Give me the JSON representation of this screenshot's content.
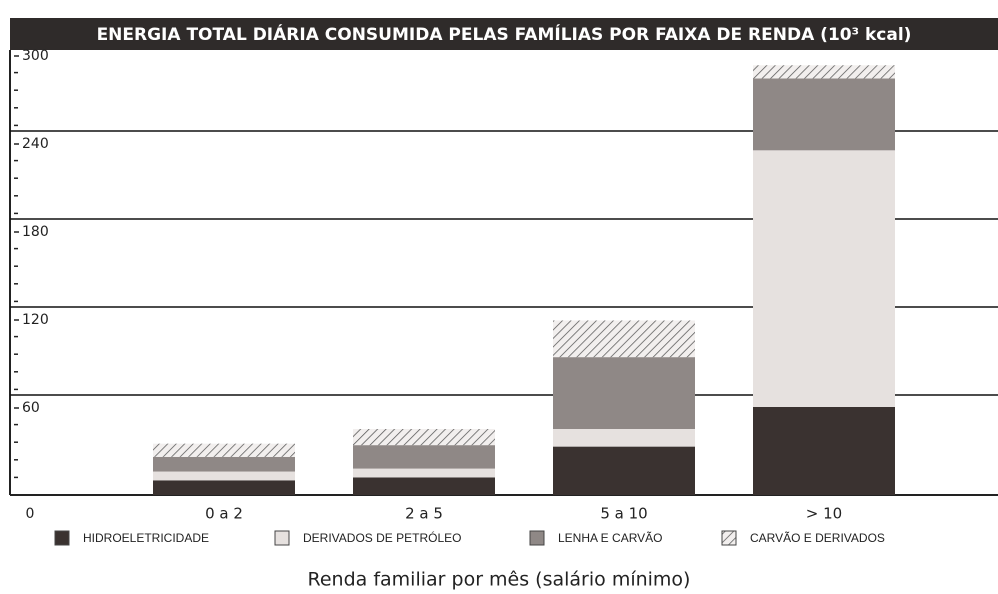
{
  "chart_data": {
    "type": "bar",
    "stacked": true,
    "title": "ENERGIA TOTAL DIÁRIA CONSUMIDA PELAS FAMÍLIAS POR FAIXA DE RENDA (10³ kcal)",
    "x_label": "Renda familiar por mês (salário mínimo)",
    "categories": [
      "0 a 2",
      "2 a 5",
      "5 a 10",
      "> 10"
    ],
    "series": [
      {
        "name": "HIDROELETRICIDADE",
        "color": "#3a3230",
        "values": [
          10,
          12,
          33,
          60
        ]
      },
      {
        "name": "DERIVADOS DE PETRÓLEO",
        "color": "#e6e1df",
        "values": [
          6,
          6,
          12,
          175
        ]
      },
      {
        "name": "LENHA E CARVÃO",
        "color": "#8f8886",
        "values": [
          10,
          16,
          49,
          49
        ]
      },
      {
        "name": "CARVÃO E DERIVADOS",
        "color": "#f2efee",
        "hatch": true,
        "values": [
          9,
          11,
          25,
          9
        ]
      }
    ],
    "ylim": [
      0,
      300
    ],
    "yticks": [
      0,
      60,
      120,
      180,
      240,
      300
    ],
    "grid": true
  }
}
